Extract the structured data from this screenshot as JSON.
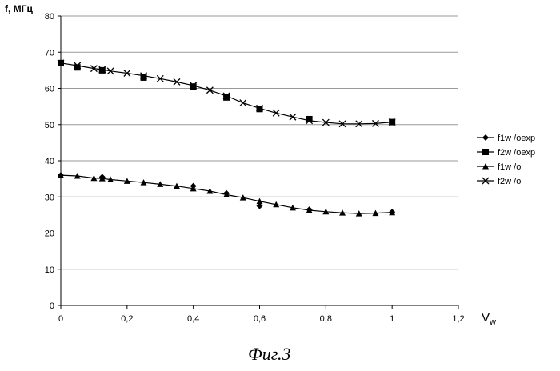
{
  "chart_data": {
    "type": "line",
    "title": "",
    "ylabel": "f, МГц",
    "xlabel": "V",
    "xlabel_sub": "w",
    "xlim": [
      0,
      1.2
    ],
    "ylim": [
      0,
      80
    ],
    "x_ticks": [
      "0",
      "0,2",
      "0,4",
      "0,6",
      "0,8",
      "1",
      "1,2"
    ],
    "y_ticks": [
      "0",
      "10",
      "20",
      "30",
      "40",
      "50",
      "60",
      "70",
      "80"
    ],
    "grid": "horizontal",
    "legend_position": "right",
    "series": [
      {
        "name": "f1w /oexp",
        "marker": "diamond",
        "line": false,
        "points": [
          [
            0,
            36
          ],
          [
            0.125,
            35.5
          ],
          [
            0.4,
            33
          ],
          [
            0.5,
            31
          ],
          [
            0.6,
            27.5
          ],
          [
            0.75,
            26.5
          ],
          [
            1.0,
            25.8
          ]
        ]
      },
      {
        "name": "f2w /oexp",
        "marker": "square",
        "line": false,
        "points": [
          [
            0,
            67
          ],
          [
            0.05,
            65.8
          ],
          [
            0.125,
            65
          ],
          [
            0.25,
            63
          ],
          [
            0.4,
            60.5
          ],
          [
            0.5,
            57.5
          ],
          [
            0.6,
            54.3
          ],
          [
            0.75,
            51.5
          ],
          [
            1.0,
            50.7
          ]
        ]
      },
      {
        "name": "f1w /o",
        "marker": "triangle",
        "line": true,
        "points": [
          [
            0,
            36
          ],
          [
            0.05,
            35.8
          ],
          [
            0.1,
            35.2
          ],
          [
            0.125,
            35.1
          ],
          [
            0.15,
            34.8
          ],
          [
            0.2,
            34.4
          ],
          [
            0.25,
            34
          ],
          [
            0.3,
            33.5
          ],
          [
            0.35,
            33
          ],
          [
            0.4,
            32.3
          ],
          [
            0.45,
            31.6
          ],
          [
            0.5,
            30.6
          ],
          [
            0.55,
            29.8
          ],
          [
            0.6,
            28.8
          ],
          [
            0.65,
            27.9
          ],
          [
            0.7,
            27
          ],
          [
            0.75,
            26.3
          ],
          [
            0.8,
            25.9
          ],
          [
            0.85,
            25.6
          ],
          [
            0.9,
            25.4
          ],
          [
            0.95,
            25.5
          ],
          [
            1.0,
            25.7
          ]
        ]
      },
      {
        "name": "f2w /o",
        "marker": "x",
        "line": true,
        "points": [
          [
            0,
            67
          ],
          [
            0.05,
            66.3
          ],
          [
            0.1,
            65.5
          ],
          [
            0.125,
            65.2
          ],
          [
            0.15,
            64.8
          ],
          [
            0.2,
            64.2
          ],
          [
            0.25,
            63.5
          ],
          [
            0.3,
            62.7
          ],
          [
            0.35,
            61.8
          ],
          [
            0.4,
            60.8
          ],
          [
            0.45,
            59.5
          ],
          [
            0.5,
            57.9
          ],
          [
            0.55,
            56
          ],
          [
            0.6,
            54.5
          ],
          [
            0.65,
            53.2
          ],
          [
            0.7,
            52.1
          ],
          [
            0.75,
            51.1
          ],
          [
            0.8,
            50.6
          ],
          [
            0.85,
            50.2
          ],
          [
            0.9,
            50.2
          ],
          [
            0.95,
            50.3
          ],
          [
            1.0,
            50.7
          ]
        ]
      }
    ]
  },
  "caption": "Фиг.3",
  "colors": {
    "axis": "#000000",
    "grid": "#9a9a9a",
    "series": "#000000"
  }
}
